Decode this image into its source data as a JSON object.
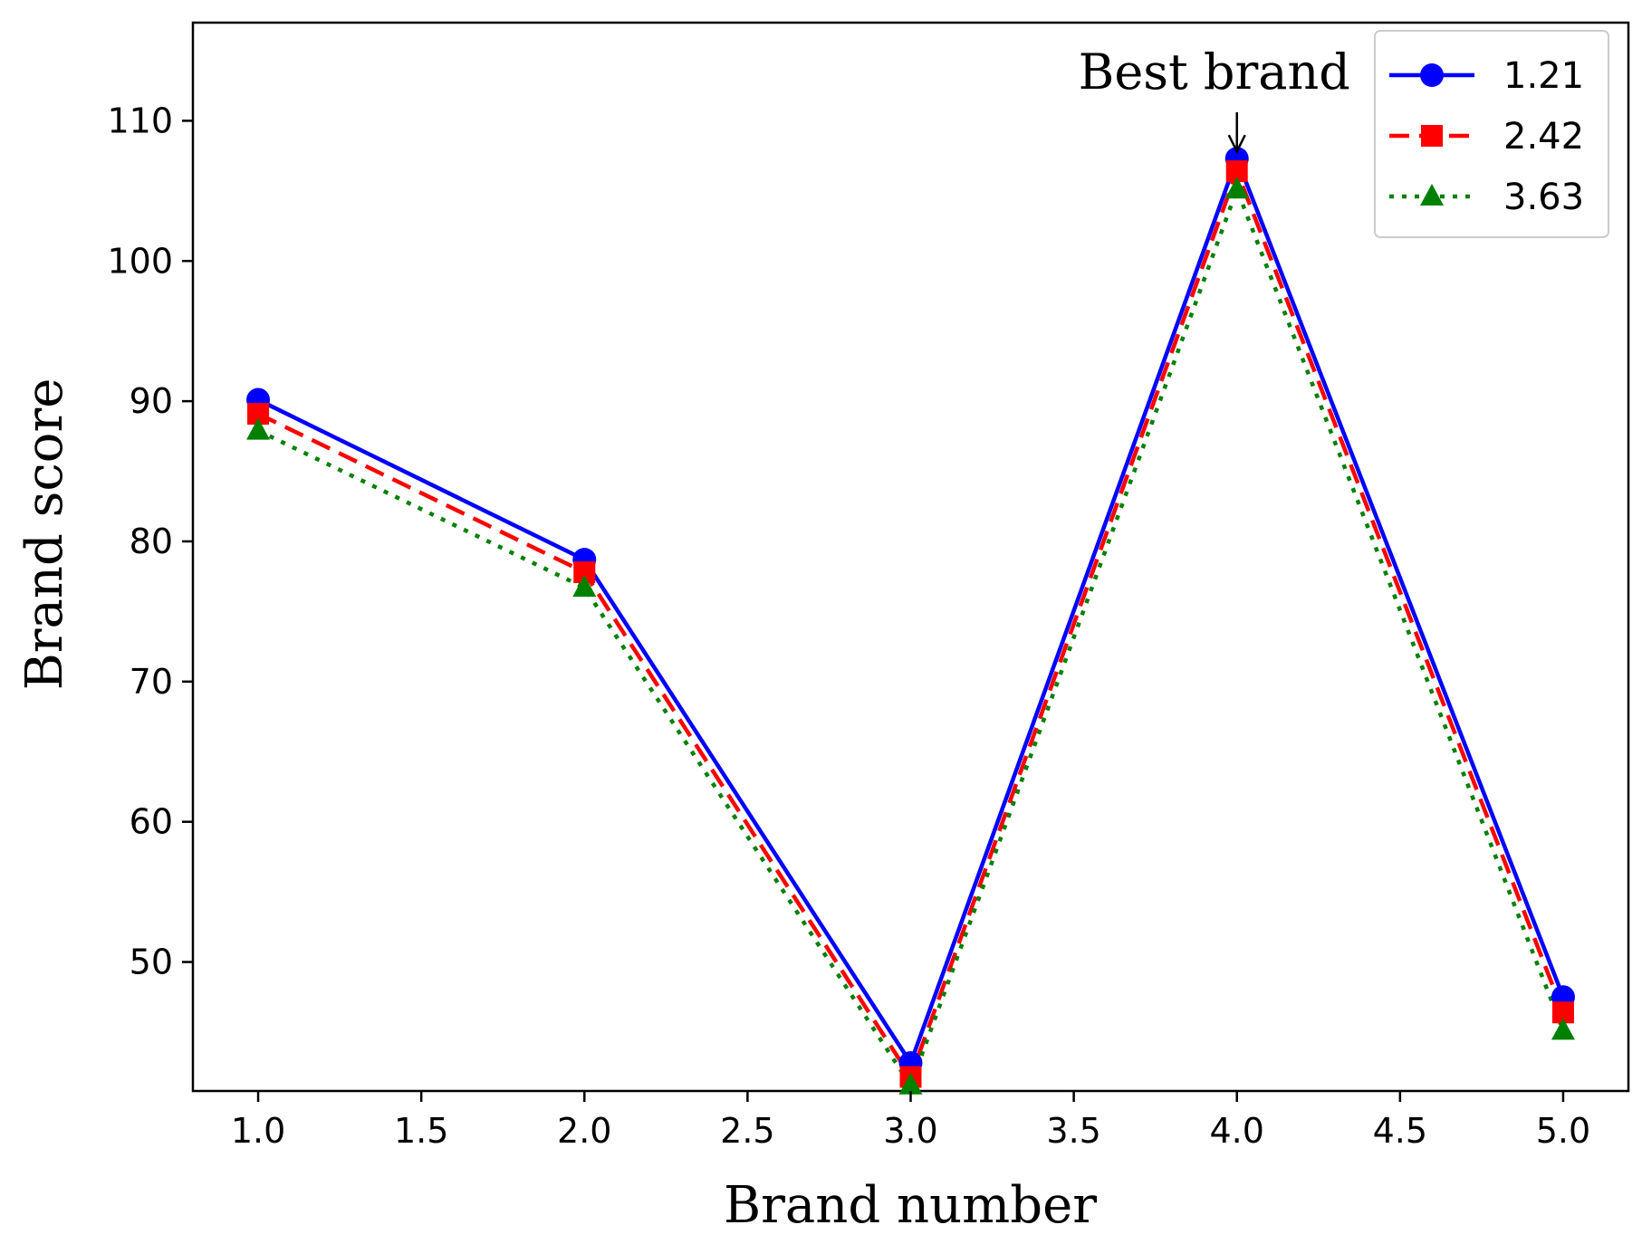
{
  "chart_data": {
    "type": "line",
    "x": [
      1.0,
      2.0,
      3.0,
      4.0,
      5.0
    ],
    "series": [
      {
        "name": "1.21",
        "values": [
          90.1,
          78.7,
          42.8,
          107.3,
          47.5
        ],
        "color": "#0000ff",
        "line_style": "solid",
        "marker": "circle"
      },
      {
        "name": "2.42",
        "values": [
          89.1,
          77.8,
          41.8,
          106.4,
          46.4
        ],
        "color": "#ff0000",
        "line_style": "dashed",
        "marker": "square"
      },
      {
        "name": "3.63",
        "values": [
          87.9,
          76.7,
          41.2,
          105.1,
          45.1
        ],
        "color": "#008000",
        "line_style": "dotted",
        "marker": "triangle"
      }
    ],
    "title": "",
    "xlabel": "Brand number",
    "ylabel": "Brand score",
    "xlim": [
      0.8,
      5.2
    ],
    "ylim": [
      40.8,
      117
    ],
    "xticks": [
      1.0,
      1.5,
      2.0,
      2.5,
      3.0,
      3.5,
      4.0,
      4.5,
      5.0
    ],
    "xtick_labels": [
      "1.0",
      "1.5",
      "2.0",
      "2.5",
      "3.0",
      "3.5",
      "4.0",
      "4.5",
      "5.0"
    ],
    "yticks": [
      50,
      60,
      70,
      80,
      90,
      100,
      110
    ],
    "ytick_labels": [
      "50",
      "60",
      "70",
      "80",
      "90",
      "100",
      "110"
    ],
    "grid": false,
    "legend_position": "top-right",
    "annotation": {
      "text": "Best brand",
      "x": 4.0,
      "y": 107.3
    }
  }
}
